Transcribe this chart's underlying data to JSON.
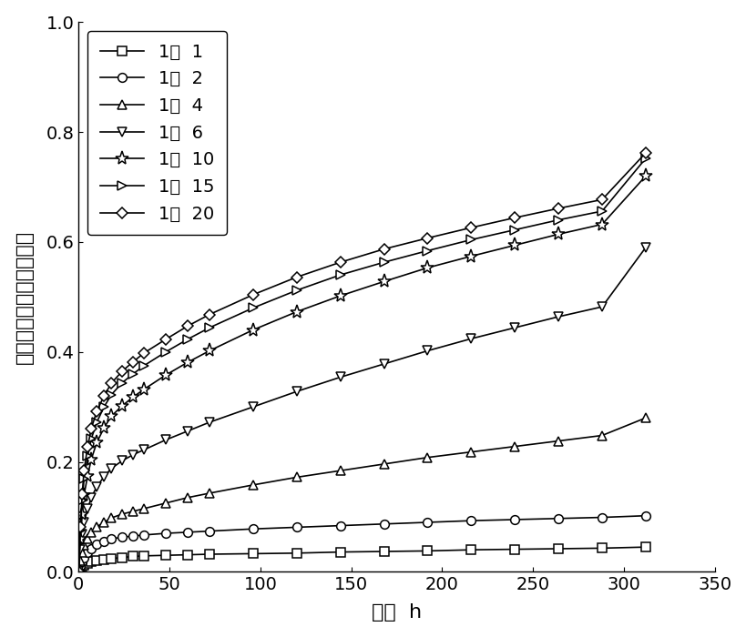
{
  "title": "",
  "xlabel": "时间  h",
  "ylabel": "高锰酸钾累积释放百分数",
  "xlim": [
    0,
    350
  ],
  "ylim": [
    0,
    1.0
  ],
  "xticks": [
    0,
    50,
    100,
    150,
    200,
    250,
    300,
    350
  ],
  "yticks": [
    0.0,
    0.2,
    0.4,
    0.6,
    0.8,
    1.0
  ],
  "series": [
    {
      "label": "1：  1",
      "marker": "s",
      "x": [
        0,
        1,
        2,
        3,
        5,
        7,
        10,
        14,
        18,
        24,
        30,
        36,
        48,
        60,
        72,
        96,
        120,
        144,
        168,
        192,
        216,
        240,
        264,
        288,
        312
      ],
      "y": [
        0.0,
        0.005,
        0.01,
        0.012,
        0.015,
        0.018,
        0.02,
        0.022,
        0.024,
        0.026,
        0.028,
        0.029,
        0.03,
        0.031,
        0.032,
        0.033,
        0.034,
        0.036,
        0.037,
        0.038,
        0.04,
        0.041,
        0.042,
        0.043,
        0.045
      ]
    },
    {
      "label": "1：  2",
      "marker": "o",
      "x": [
        0,
        1,
        2,
        3,
        5,
        7,
        10,
        14,
        18,
        24,
        30,
        36,
        48,
        60,
        72,
        96,
        120,
        144,
        168,
        192,
        216,
        240,
        264,
        288,
        312
      ],
      "y": [
        0.0,
        0.01,
        0.018,
        0.025,
        0.035,
        0.042,
        0.05,
        0.055,
        0.06,
        0.063,
        0.065,
        0.067,
        0.07,
        0.072,
        0.074,
        0.078,
        0.081,
        0.084,
        0.087,
        0.09,
        0.093,
        0.095,
        0.097,
        0.099,
        0.102
      ]
    },
    {
      "label": "1：  4",
      "marker": "^",
      "x": [
        0,
        1,
        2,
        3,
        5,
        7,
        10,
        14,
        18,
        24,
        30,
        36,
        48,
        60,
        72,
        96,
        120,
        144,
        168,
        192,
        216,
        240,
        264,
        288,
        312
      ],
      "y": [
        0.0,
        0.02,
        0.035,
        0.048,
        0.06,
        0.072,
        0.082,
        0.09,
        0.098,
        0.105,
        0.11,
        0.115,
        0.125,
        0.135,
        0.143,
        0.158,
        0.172,
        0.184,
        0.196,
        0.208,
        0.218,
        0.228,
        0.238,
        0.248,
        0.28
      ]
    },
    {
      "label": "1：  6",
      "marker": "v",
      "x": [
        0,
        1,
        2,
        3,
        5,
        7,
        10,
        14,
        18,
        24,
        30,
        36,
        48,
        60,
        72,
        96,
        120,
        144,
        168,
        192,
        216,
        240,
        264,
        288,
        312
      ],
      "y": [
        0.0,
        0.04,
        0.068,
        0.09,
        0.115,
        0.135,
        0.155,
        0.173,
        0.188,
        0.202,
        0.213,
        0.222,
        0.24,
        0.256,
        0.272,
        0.3,
        0.328,
        0.354,
        0.378,
        0.402,
        0.424,
        0.444,
        0.464,
        0.482,
        0.59
      ]
    },
    {
      "label": "1：  10",
      "marker": "*",
      "x": [
        0,
        1,
        2,
        3,
        5,
        7,
        10,
        14,
        18,
        24,
        30,
        36,
        48,
        60,
        72,
        96,
        120,
        144,
        168,
        192,
        216,
        240,
        264,
        288,
        312
      ],
      "y": [
        0.0,
        0.06,
        0.105,
        0.14,
        0.175,
        0.205,
        0.235,
        0.262,
        0.283,
        0.302,
        0.318,
        0.332,
        0.358,
        0.381,
        0.402,
        0.44,
        0.473,
        0.502,
        0.528,
        0.553,
        0.574,
        0.594,
        0.614,
        0.632,
        0.72
      ]
    },
    {
      "label": "1：  15",
      "marker": ">",
      "x": [
        0,
        1,
        2,
        3,
        5,
        7,
        10,
        14,
        18,
        24,
        30,
        36,
        48,
        60,
        72,
        96,
        120,
        144,
        168,
        192,
        216,
        240,
        264,
        288,
        312
      ],
      "y": [
        0.0,
        0.075,
        0.13,
        0.17,
        0.21,
        0.242,
        0.272,
        0.3,
        0.322,
        0.344,
        0.36,
        0.375,
        0.4,
        0.423,
        0.444,
        0.48,
        0.512,
        0.54,
        0.563,
        0.584,
        0.604,
        0.622,
        0.64,
        0.656,
        0.752
      ]
    },
    {
      "label": "1：  20",
      "marker": "D",
      "x": [
        0,
        1,
        2,
        3,
        5,
        7,
        10,
        14,
        18,
        24,
        30,
        36,
        48,
        60,
        72,
        96,
        120,
        144,
        168,
        192,
        216,
        240,
        264,
        288,
        312
      ],
      "y": [
        0.0,
        0.082,
        0.142,
        0.185,
        0.228,
        0.261,
        0.292,
        0.32,
        0.343,
        0.365,
        0.382,
        0.398,
        0.423,
        0.447,
        0.468,
        0.504,
        0.536,
        0.563,
        0.587,
        0.607,
        0.626,
        0.644,
        0.661,
        0.677,
        0.762
      ]
    }
  ],
  "line_color": "#000000",
  "marker_size_default": 7,
  "marker_size_star": 11,
  "marker_size_diamond": 6,
  "marker_facecolor": "white",
  "linewidth": 1.2,
  "legend_fontsize": 14,
  "axis_label_fontsize": 16,
  "tick_fontsize": 14
}
